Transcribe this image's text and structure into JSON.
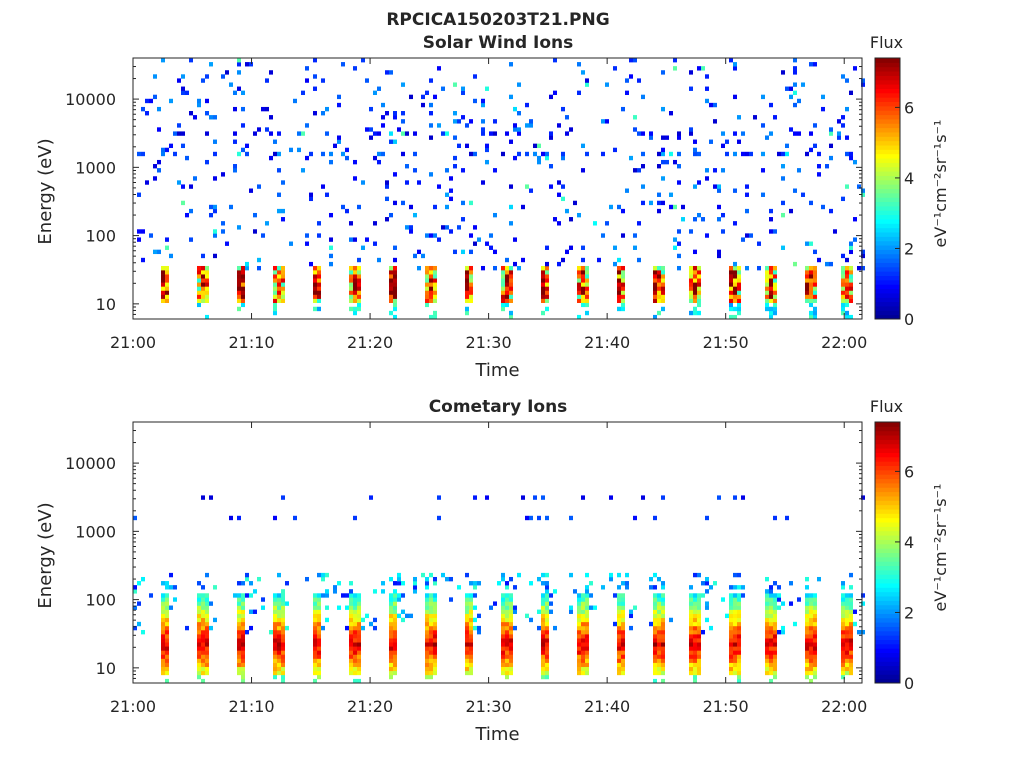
{
  "figure": {
    "title": "RPCICA150203T21.PNG"
  },
  "colormap": [
    "#00008f",
    "#0000ff",
    "#0080ff",
    "#00ffff",
    "#80ff80",
    "#ffff00",
    "#ff8000",
    "#ff0000",
    "#800000"
  ],
  "chart_data": [
    {
      "type": "heatmap",
      "title": "Solar Wind Ions",
      "xlabel": "Time",
      "ylabel": "Energy (eV)",
      "y_scale": "log",
      "ylim": [
        6,
        40000
      ],
      "xlim": [
        "21:00",
        "22:01:30"
      ],
      "x_ticks": [
        "21:00",
        "21:10",
        "21:20",
        "21:30",
        "21:40",
        "21:50",
        "22:00"
      ],
      "y_ticks": [
        {
          "value": 10,
          "label": "10"
        },
        {
          "value": 100,
          "label": "100"
        },
        {
          "value": 1000,
          "label": "1000"
        },
        {
          "value": 10000,
          "label": "10000"
        }
      ],
      "colorbar": {
        "title": "Flux",
        "label": "eV⁻¹cm⁻²sr⁻¹s⁻¹",
        "range": [
          0,
          7.4
        ],
        "ticks": [
          0,
          2,
          4,
          6
        ]
      },
      "sweep_period_minutes": 3.2,
      "low_energy_band_eV": [
        10,
        35
      ],
      "low_energy_band_flux": [
        3,
        7
      ],
      "sparse_background_eV": [
        30,
        40000
      ],
      "sparse_background_flux": [
        0.5,
        2
      ],
      "enhanced_lines_eV": [
        1600,
        3200
      ]
    },
    {
      "type": "heatmap",
      "title": "Cometary Ions",
      "xlabel": "Time",
      "ylabel": "Energy (eV)",
      "y_scale": "log",
      "ylim": [
        6,
        40000
      ],
      "xlim": [
        "21:00",
        "22:01:30"
      ],
      "x_ticks": [
        "21:00",
        "21:10",
        "21:20",
        "21:30",
        "21:40",
        "21:50",
        "22:00"
      ],
      "y_ticks": [
        {
          "value": 10,
          "label": "10"
        },
        {
          "value": 100,
          "label": "100"
        },
        {
          "value": 1000,
          "label": "1000"
        },
        {
          "value": 10000,
          "label": "10000"
        }
      ],
      "colorbar": {
        "title": "Flux",
        "label": "eV⁻¹cm⁻²sr⁻¹s⁻¹",
        "range": [
          0,
          7.4
        ],
        "ticks": [
          0,
          2,
          4,
          6
        ]
      },
      "sweep_period_minutes": 3.2,
      "low_energy_band_eV": [
        8,
        250
      ],
      "low_energy_band_flux": [
        2,
        7.4
      ],
      "sparse_lines_eV": [
        1600,
        3200
      ],
      "sparse_lines_flux": [
        0.5,
        1.5
      ]
    }
  ]
}
